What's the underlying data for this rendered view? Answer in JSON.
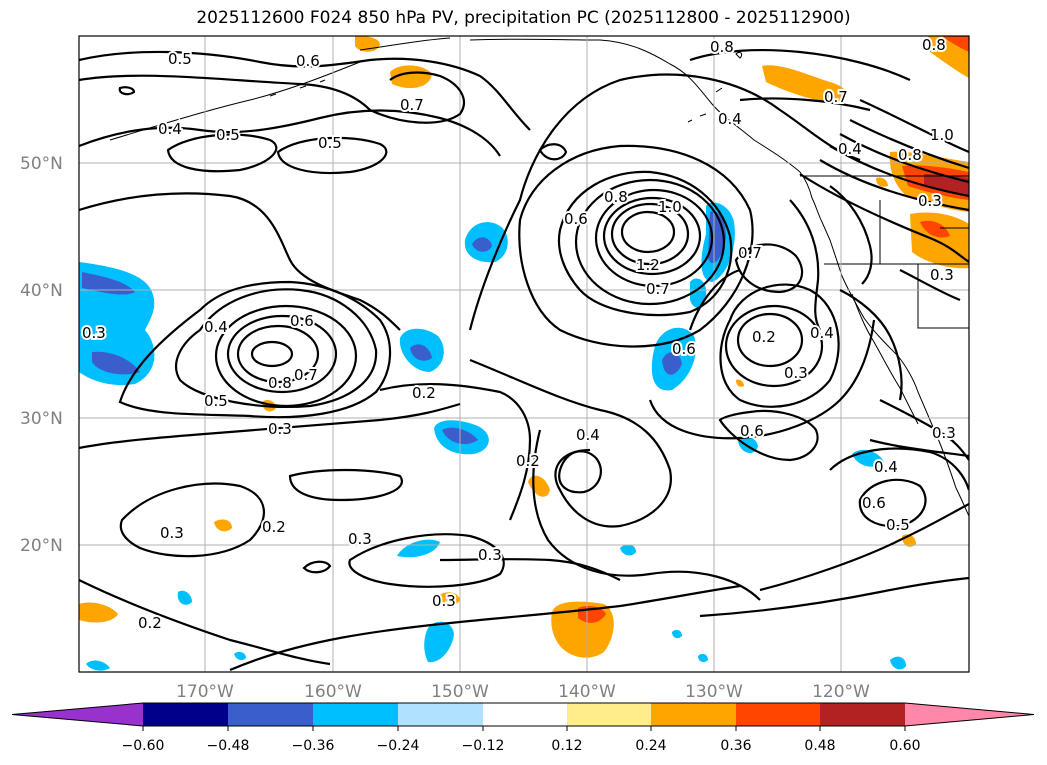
{
  "title": "2025112600 F024 850 hPa PV, precipitation PC (2025112800 - 2025112900)",
  "lat_labels": [
    "50°N",
    "40°N",
    "30°N",
    "20°N"
  ],
  "lon_labels": [
    "170°W",
    "160°W",
    "150°W",
    "140°W",
    "130°W",
    "120°W"
  ],
  "colorbar": {
    "tick_labels": [
      "−0.60",
      "−0.48",
      "−0.36",
      "−0.24",
      "−0.12",
      "0.12",
      "0.24",
      "0.36",
      "0.48",
      "0.60"
    ],
    "colors": [
      "#9932CC",
      "#00008B",
      "#3A5FCD",
      "#00BFFF",
      "#B0E2FF",
      "#FFFFFF",
      "#FFEC8B",
      "#FFA500",
      "#FF4500",
      "#B22222",
      "#FF88AA"
    ]
  },
  "contour_labels": [
    "0.5",
    "0.6",
    "0.7",
    "0.4",
    "0.5",
    "0.5",
    "0.8",
    "0.8",
    "0.7",
    "0.4",
    "1.0",
    "0.8",
    "0.3",
    "0.3",
    "0.4",
    "0.6",
    "0.8",
    "1.0",
    "1.2",
    "0.7",
    "0.7",
    "0.6",
    "0.2",
    "0.3",
    "0.4",
    "0.3",
    "0.4",
    "0.6",
    "0.8",
    "0.7",
    "0.5",
    "0.3",
    "0.2",
    "0.4",
    "0.6",
    "0.3",
    "0.2",
    "0.3",
    "0.3",
    "0.3",
    "0.2",
    "0.6",
    "0.5",
    "0.4",
    "0.3",
    "0.2"
  ]
}
